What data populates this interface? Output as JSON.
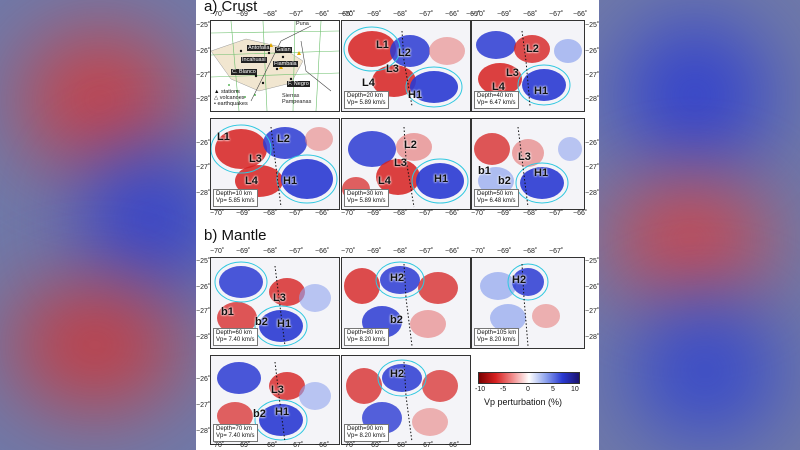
{
  "figure": {
    "sections": {
      "crust_title": "a) Crust",
      "mantle_title": "b) Mantle"
    },
    "axes": {
      "lon_labels": [
        "−70˚",
        "−69˚",
        "−68˚",
        "−67˚",
        "−66˚",
        "−65˚"
      ],
      "lat_labels": [
        "−25˚",
        "−26˚",
        "−27˚",
        "−28˚"
      ]
    },
    "map_legend": {
      "stations": "▲ stations",
      "volcanoes": "△ volcanoes",
      "earthquakes": "• earthquakes"
    },
    "places": {
      "puna": "Puna",
      "antofalla": "Antofalla",
      "galan": "Galan",
      "incahuasi": "Incahuasi",
      "fiambala": "Fiambala",
      "negro": "F. Negro",
      "blanco": "C. Blanco",
      "sierras": "Sierras Pampeanas"
    },
    "crust_panels": {
      "p20": {
        "depth": "Depth=20 km",
        "vp": "Vp= 5.89 km/s",
        "labels": [
          "L1",
          "L2",
          "L3",
          "L4",
          "H1"
        ]
      },
      "p40": {
        "depth": "Depth=40 km",
        "vp": "Vp= 6.47 km/s",
        "labels": [
          "L2",
          "L3",
          "L4",
          "H1"
        ]
      },
      "p10": {
        "depth": "Depth=10 km",
        "vp": "Vp= 5.85 km/s",
        "labels": [
          "L1",
          "L2",
          "L3",
          "L4",
          "H1"
        ]
      },
      "p30": {
        "depth": "Depth=30 km",
        "vp": "Vp= 5.89 km/s",
        "labels": [
          "L2",
          "L3",
          "L4",
          "H1"
        ]
      },
      "p50": {
        "depth": "Depth=50 km",
        "vp": "Vp= 6.48 km/s",
        "labels": [
          "L3",
          "b1",
          "b2",
          "H1"
        ]
      }
    },
    "mantle_panels": {
      "p60": {
        "depth": "Depth=60 km",
        "vp": "Vp= 7.40 km/s",
        "labels": [
          "L3",
          "b1",
          "b2",
          "H1"
        ]
      },
      "p80": {
        "depth": "Depth=80 km",
        "vp": "Vp= 8.20 km/s",
        "labels": [
          "H2",
          "b2"
        ]
      },
      "p105": {
        "depth": "Depth=105 km",
        "vp": "Vp= 8.20 km/s",
        "labels": [
          "H2"
        ]
      },
      "p70": {
        "depth": "Depth=70 km",
        "vp": "Vp= 7.40 km/s",
        "labels": [
          "L3",
          "b2",
          "H1"
        ]
      },
      "p90": {
        "depth": "Depth=90 km",
        "vp": "Vp= 8.20 km/s",
        "labels": [
          "H2"
        ]
      }
    },
    "colorbar": {
      "ticks": [
        "-10",
        "-5",
        "0",
        "5",
        "10"
      ],
      "title": "Vp perturbation (%)",
      "colors": {
        "negative": "#d62020",
        "positive": "#2a3ad2"
      }
    }
  }
}
